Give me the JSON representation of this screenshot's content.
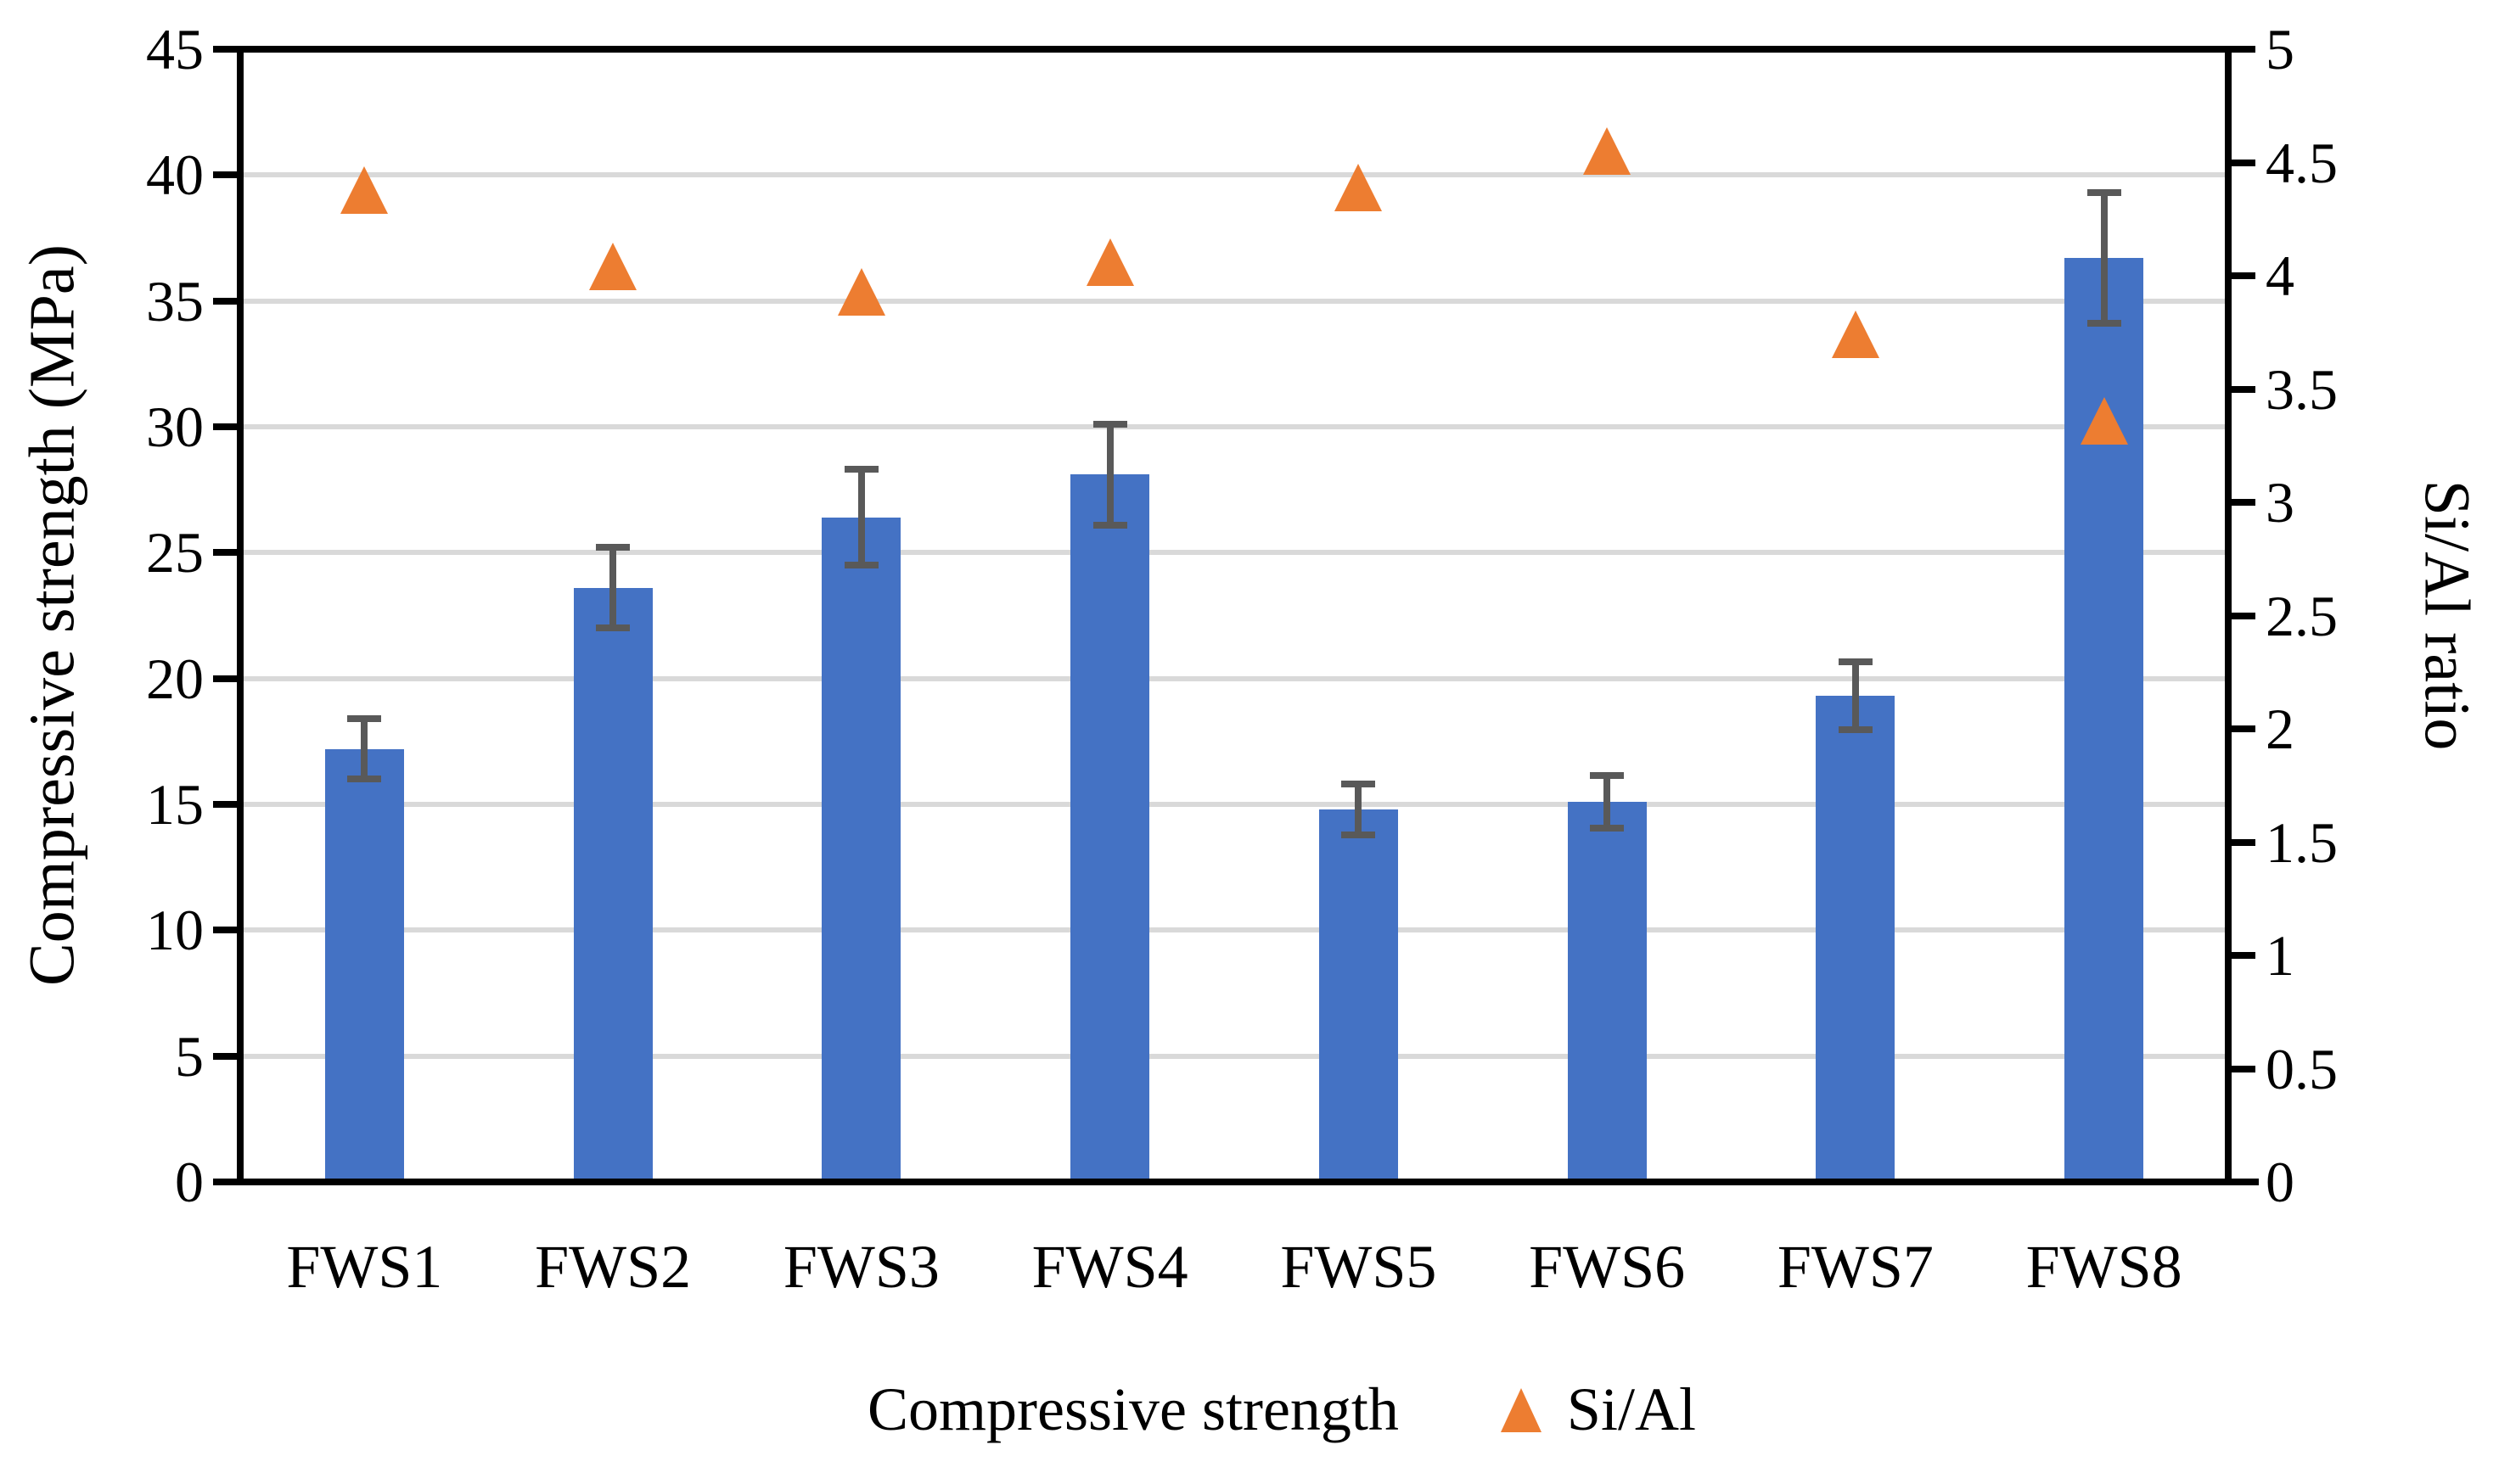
{
  "chart_data": {
    "type": "bar",
    "subtype": "combo-bar-scatter",
    "categories": [
      "FWS1",
      "FWS2",
      "FWS3",
      "FWS4",
      "FWS5",
      "FWS6",
      "FWS7",
      "FWS8"
    ],
    "series": [
      {
        "name": "Compressive strength",
        "type": "bar",
        "axis": "left",
        "color": "#4472C4",
        "values": [
          17.2,
          23.6,
          26.4,
          28.1,
          14.8,
          15.1,
          19.3,
          36.7
        ],
        "error_bars": [
          1.2,
          1.6,
          1.9,
          2.0,
          1.0,
          1.05,
          1.35,
          2.6
        ],
        "error_color": "#595959"
      },
      {
        "name": "Si/Al",
        "type": "scatter",
        "marker": "triangle",
        "axis": "right",
        "color": "#ED7D31",
        "values": [
          4.38,
          4.04,
          3.93,
          4.06,
          4.39,
          4.55,
          3.74,
          3.36
        ]
      }
    ],
    "left_axis": {
      "title": "Compressive strength (MPa)",
      "min": 0,
      "max": 45,
      "step": 5,
      "tick_labels": [
        "0",
        "5",
        "10",
        "15",
        "20",
        "25",
        "30",
        "35",
        "40",
        "45"
      ]
    },
    "right_axis": {
      "title": "Si/Al ratio",
      "min": 0,
      "max": 5,
      "step": 0.5,
      "tick_labels": [
        "0",
        "0.5",
        "1",
        "1.5",
        "2",
        "2.5",
        "3",
        "3.5",
        "4",
        "4.5",
        "5"
      ]
    },
    "grid": true,
    "gridline_color": "#D9D9D9",
    "axis_color": "#000000",
    "legend_position": "bottom"
  }
}
